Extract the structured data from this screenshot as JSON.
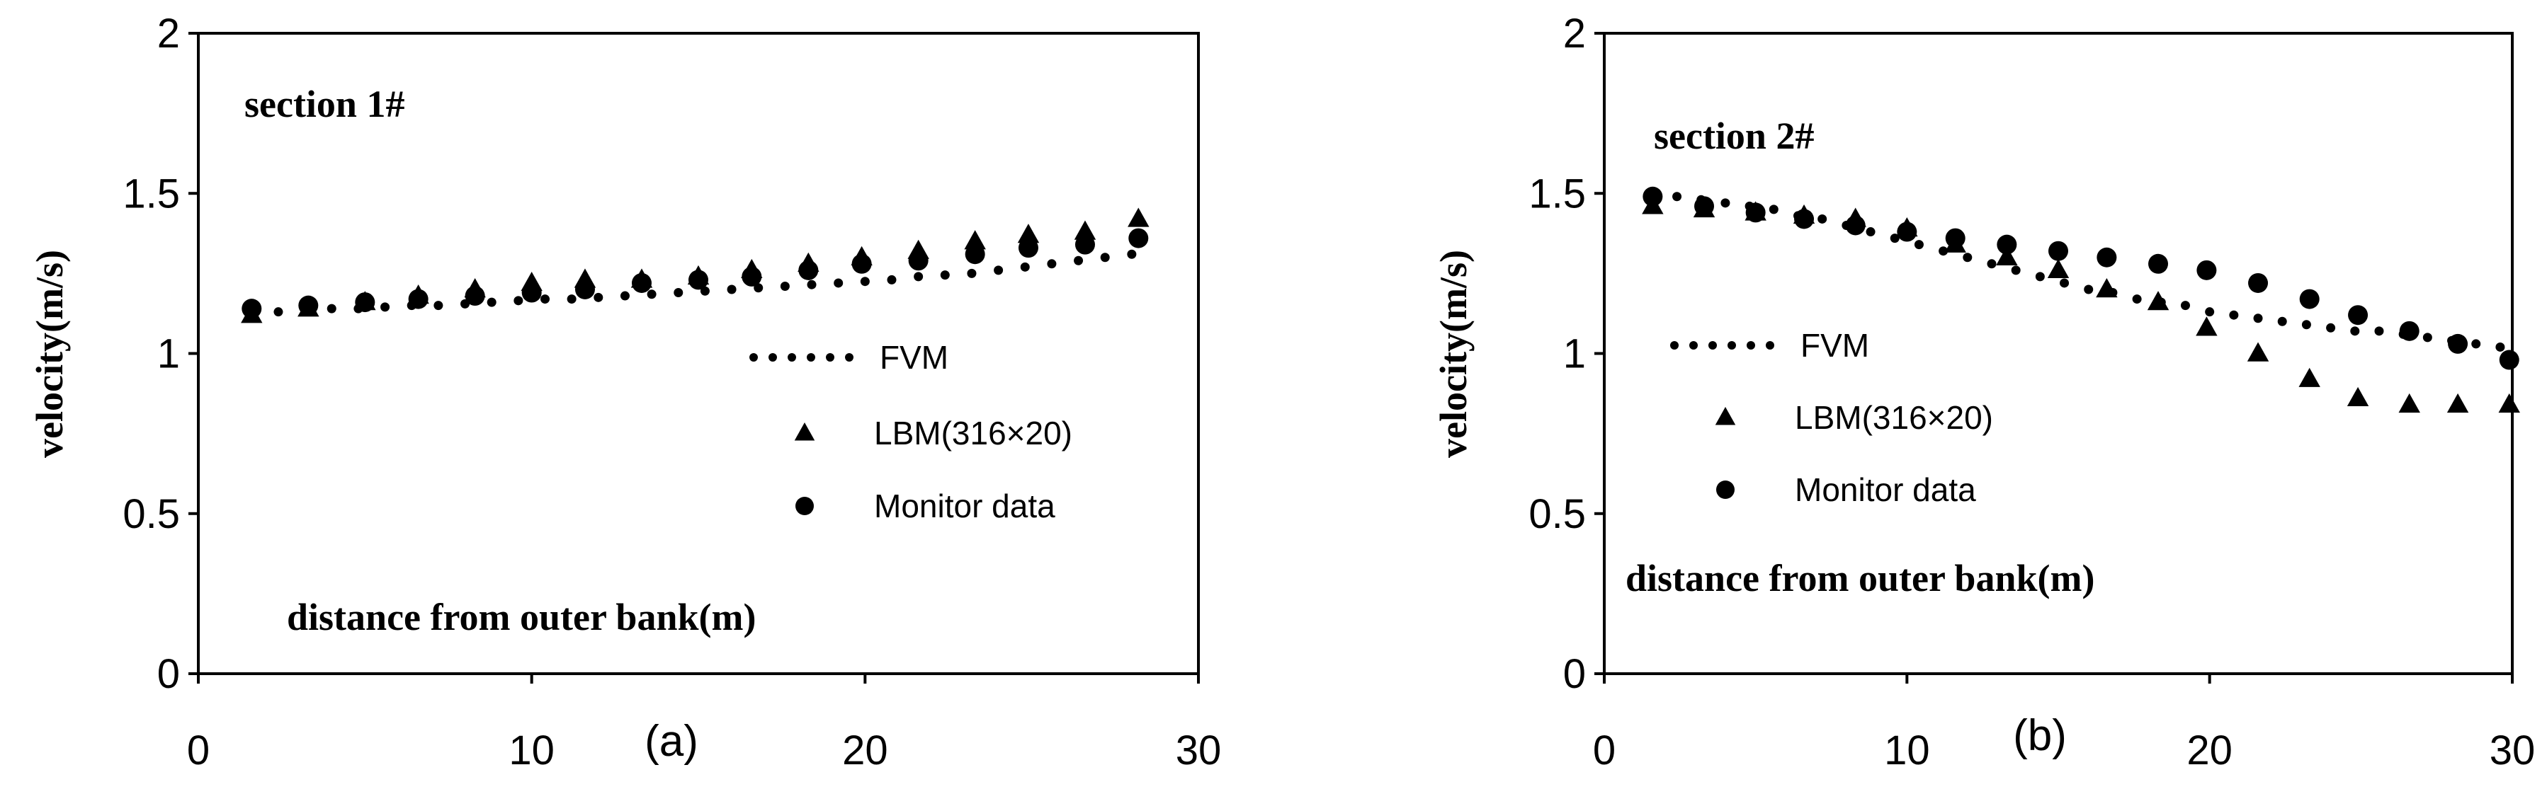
{
  "chart_data": [
    {
      "type": "scatter",
      "panel_label": "(a)",
      "annotation": "section 1#",
      "xlabel": "distance from outer bank(m)",
      "ylabel": "velocity(m/s)",
      "xlim": [
        0,
        30
      ],
      "ylim": [
        0,
        2
      ],
      "xticks": [
        "0",
        "10",
        "20",
        "30"
      ],
      "yticks": [
        "0",
        "0.5",
        "1",
        "1.5",
        "2"
      ],
      "grid": false,
      "legend_position": "center-right",
      "series": [
        {
          "name": "FVM",
          "marker": "dotted-line",
          "x": [
            1.6,
            2.4,
            3.2,
            4.0,
            4.8,
            5.6,
            6.4,
            7.2,
            8.0,
            8.8,
            9.6,
            10.4,
            11.2,
            12.0,
            12.8,
            13.6,
            14.4,
            15.2,
            16.0,
            16.8,
            17.6,
            18.4,
            19.2,
            20.0,
            20.8,
            21.6,
            22.4,
            23.2,
            24.0,
            24.8,
            25.6,
            26.4,
            27.2,
            28.0
          ],
          "y": [
            1.13,
            1.13,
            1.135,
            1.14,
            1.14,
            1.145,
            1.15,
            1.15,
            1.155,
            1.16,
            1.165,
            1.17,
            1.17,
            1.175,
            1.18,
            1.185,
            1.19,
            1.195,
            1.2,
            1.205,
            1.21,
            1.215,
            1.22,
            1.225,
            1.23,
            1.24,
            1.245,
            1.25,
            1.26,
            1.27,
            1.28,
            1.29,
            1.3,
            1.31
          ]
        },
        {
          "name": "LBM(316×20)",
          "marker": "triangle",
          "x": [
            1.6,
            3.3,
            5.0,
            6.6,
            8.3,
            10.0,
            11.6,
            13.3,
            15.0,
            16.6,
            18.3,
            19.9,
            21.6,
            23.3,
            24.9,
            26.6,
            28.2
          ],
          "y": [
            1.12,
            1.14,
            1.16,
            1.18,
            1.2,
            1.22,
            1.23,
            1.23,
            1.24,
            1.26,
            1.28,
            1.3,
            1.32,
            1.35,
            1.37,
            1.38,
            1.42
          ]
        },
        {
          "name": "Monitor data",
          "marker": "circle",
          "x": [
            1.6,
            3.3,
            5.0,
            6.6,
            8.3,
            10.0,
            11.6,
            13.3,
            15.0,
            16.6,
            18.3,
            19.9,
            21.6,
            23.3,
            24.9,
            26.6,
            28.2
          ],
          "y": [
            1.14,
            1.15,
            1.16,
            1.17,
            1.18,
            1.19,
            1.2,
            1.22,
            1.23,
            1.24,
            1.26,
            1.28,
            1.29,
            1.31,
            1.33,
            1.34,
            1.36
          ]
        }
      ]
    },
    {
      "type": "scatter",
      "panel_label": "(b)",
      "annotation": "section 2#",
      "xlabel": "distance from outer bank(m)",
      "ylabel": "velocity(m/s)",
      "xlim": [
        0,
        30
      ],
      "ylim": [
        0,
        2
      ],
      "xticks": [
        "0",
        "10",
        "20",
        "30"
      ],
      "yticks": [
        "0",
        "0.5",
        "1",
        "1.5",
        "2"
      ],
      "grid": false,
      "legend_position": "center-left",
      "series": [
        {
          "name": "FVM",
          "marker": "dotted-line",
          "x": [
            1.6,
            2.4,
            3.2,
            4.0,
            4.8,
            5.6,
            6.4,
            7.2,
            8.0,
            8.8,
            9.6,
            10.4,
            11.2,
            12.0,
            12.8,
            13.6,
            14.4,
            15.2,
            16.0,
            16.8,
            17.6,
            18.4,
            19.2,
            20.0,
            20.8,
            21.6,
            22.4,
            23.2,
            24.0,
            24.8,
            25.6,
            26.4,
            27.2,
            28.0,
            28.8,
            29.6
          ],
          "y": [
            1.49,
            1.49,
            1.48,
            1.47,
            1.46,
            1.45,
            1.43,
            1.42,
            1.4,
            1.38,
            1.36,
            1.34,
            1.32,
            1.3,
            1.28,
            1.26,
            1.24,
            1.22,
            1.2,
            1.19,
            1.17,
            1.16,
            1.15,
            1.13,
            1.12,
            1.11,
            1.1,
            1.09,
            1.08,
            1.07,
            1.07,
            1.06,
            1.05,
            1.04,
            1.03,
            1.02
          ]
        },
        {
          "name": "LBM(316×20)",
          "marker": "triangle",
          "x": [
            1.6,
            3.3,
            5.0,
            6.6,
            8.3,
            10.0,
            11.6,
            13.3,
            15.0,
            16.6,
            18.3,
            19.9,
            21.6,
            23.3,
            24.9,
            26.6,
            28.2,
            29.9
          ],
          "y": [
            1.46,
            1.45,
            1.44,
            1.43,
            1.42,
            1.39,
            1.34,
            1.3,
            1.26,
            1.2,
            1.16,
            1.08,
            1.0,
            0.92,
            0.86,
            0.84,
            0.84,
            0.84
          ]
        },
        {
          "name": "Monitor data",
          "marker": "circle",
          "x": [
            1.6,
            3.3,
            5.0,
            6.6,
            8.3,
            10.0,
            11.6,
            13.3,
            15.0,
            16.6,
            18.3,
            19.9,
            21.6,
            23.3,
            24.9,
            26.6,
            28.2,
            29.9
          ],
          "y": [
            1.49,
            1.46,
            1.44,
            1.42,
            1.4,
            1.38,
            1.36,
            1.34,
            1.32,
            1.3,
            1.28,
            1.26,
            1.22,
            1.17,
            1.12,
            1.07,
            1.03,
            0.98
          ]
        }
      ]
    }
  ]
}
